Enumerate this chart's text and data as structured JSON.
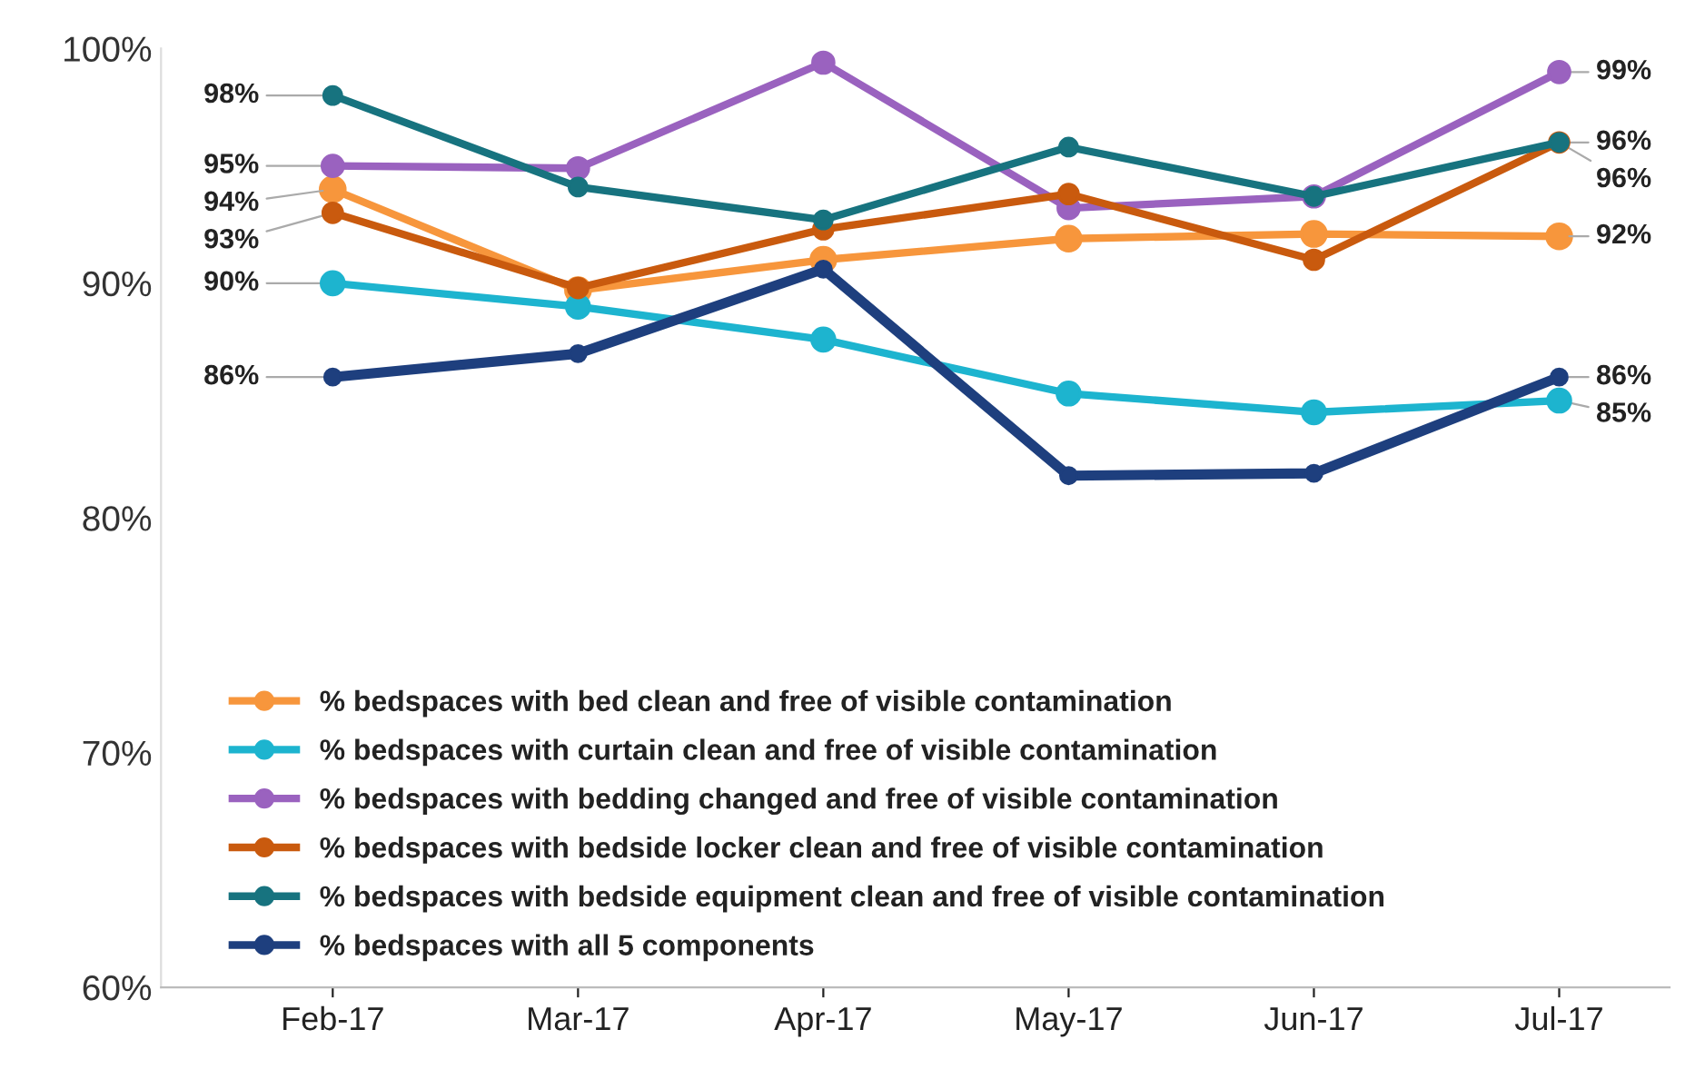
{
  "chart_data": {
    "type": "line",
    "categories": [
      "Feb-17",
      "Mar-17",
      "Apr-17",
      "May-17",
      "Jun-17",
      "Jul-17"
    ],
    "ylim": [
      60,
      100
    ],
    "yticks": [
      {
        "value": 60,
        "label": "60%"
      },
      {
        "value": 70,
        "label": "70%"
      },
      {
        "value": 80,
        "label": "80%"
      },
      {
        "value": 90,
        "label": "90%"
      },
      {
        "value": 100,
        "label": "100%"
      }
    ],
    "grid": false,
    "legend": "bottom left",
    "marker": "circle",
    "line_style": "solid",
    "series": [
      {
        "name": "% bedspaces with bed clean and free of visible contamination",
        "color": "#f7963c",
        "values": [
          94,
          89.7,
          91.0,
          91.9,
          92.1,
          92
        ],
        "value_labels": [
          "94%",
          null,
          null,
          null,
          null,
          "92%"
        ]
      },
      {
        "name": "% bedspaces with curtain clean and free of visible contamination",
        "color": "#1db4cf",
        "values": [
          90,
          89.0,
          87.6,
          85.3,
          84.5,
          85
        ],
        "value_labels": [
          "90%",
          null,
          null,
          null,
          null,
          "85%"
        ]
      },
      {
        "name": "% bedspaces with bedding changed and free of visible contamination",
        "color": "#9a62bf",
        "values": [
          95,
          94.9,
          99.4,
          93.2,
          93.7,
          99
        ],
        "value_labels": [
          "95%",
          null,
          null,
          null,
          null,
          "99%"
        ]
      },
      {
        "name": "% bedspaces with bedside locker clean and free of visible contamination",
        "color": "#c95a0e",
        "values": [
          93,
          89.8,
          92.3,
          93.8,
          91.0,
          96
        ],
        "value_labels": [
          "93%",
          null,
          null,
          null,
          null,
          "96%"
        ]
      },
      {
        "name": "% bedspaces with bedside equipment clean and free of visible contamination",
        "color": "#17737f",
        "values": [
          98,
          94.1,
          92.7,
          95.8,
          93.7,
          96
        ],
        "value_labels": [
          "98%",
          null,
          null,
          null,
          null,
          "96%"
        ]
      },
      {
        "name": "% bedspaces with all 5 components",
        "color": "#1e3f7e",
        "values": [
          86,
          87.0,
          90.6,
          81.8,
          81.9,
          86
        ],
        "value_labels": [
          "86%",
          null,
          null,
          null,
          null,
          "86%"
        ]
      }
    ]
  }
}
